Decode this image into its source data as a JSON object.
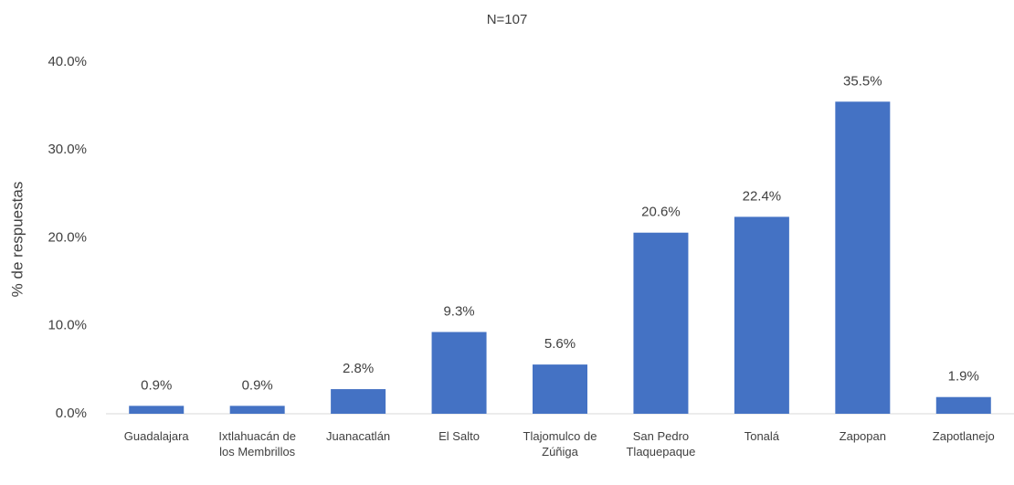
{
  "chart_data": {
    "type": "bar",
    "title": "N=107",
    "y_label": "% de respuestas",
    "categories": [
      "Guadalajara",
      "Ixtlahuacán de los Membrillos",
      "Juanacatlán",
      "El Salto",
      "Tlajomulco de Zúñiga",
      "San Pedro Tlaquepaque",
      "Tonalá",
      "Zapopan",
      "Zapotlanejo"
    ],
    "values": [
      0.9,
      0.9,
      2.8,
      9.3,
      5.6,
      20.6,
      22.4,
      35.5,
      1.9
    ],
    "value_labels": [
      "0.9%",
      "0.9%",
      "2.8%",
      "9.3%",
      "5.6%",
      "20.6%",
      "22.4%",
      "35.5%",
      "1.9%"
    ],
    "color": "#4472c4",
    "ylim": [
      0,
      40
    ],
    "yticks": [
      {
        "value": 0,
        "label": "0.0%"
      },
      {
        "value": 10,
        "label": "10.0%"
      },
      {
        "value": 20,
        "label": "20.0%"
      },
      {
        "value": 30,
        "label": "30.0%"
      },
      {
        "value": 40,
        "label": "40.0%"
      }
    ],
    "grid": false
  }
}
